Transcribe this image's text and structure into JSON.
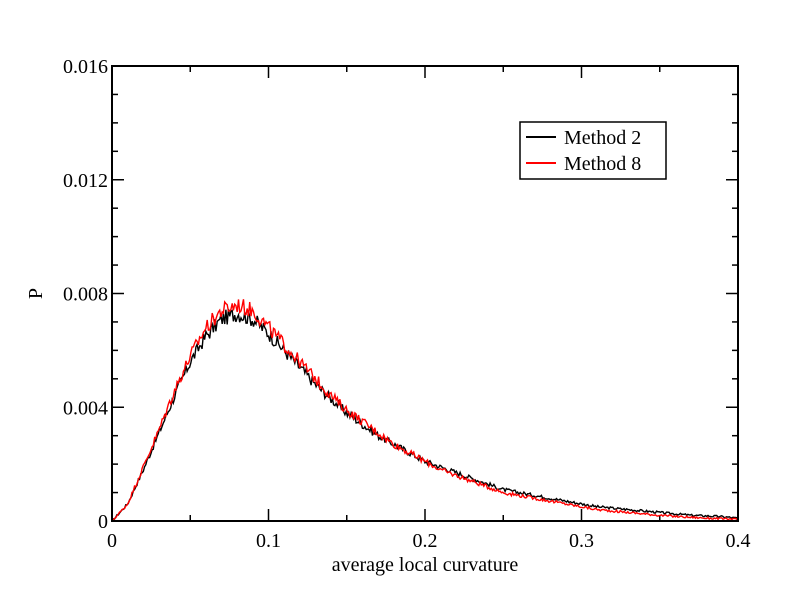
{
  "chart_data": {
    "type": "line",
    "title": "",
    "xlabel": "average local curvature",
    "ylabel": "P",
    "xlim": [
      0,
      0.4
    ],
    "ylim": [
      0,
      0.016
    ],
    "x_ticks": [
      "0",
      "0.1",
      "0.2",
      "0.3",
      "0.4"
    ],
    "y_ticks": [
      "0",
      "0.004",
      "0.008",
      "0.012",
      "0.016"
    ],
    "grid": false,
    "legend_position": "top-right",
    "series": [
      {
        "name": "Method 2",
        "color": "#000000",
        "x": [
          0,
          0.01,
          0.02,
          0.03,
          0.04,
          0.05,
          0.06,
          0.07,
          0.08,
          0.09,
          0.1,
          0.11,
          0.12,
          0.13,
          0.14,
          0.15,
          0.16,
          0.17,
          0.18,
          0.19,
          0.2,
          0.21,
          0.22,
          0.23,
          0.24,
          0.25,
          0.26,
          0.27,
          0.28,
          0.29,
          0.3,
          0.31,
          0.32,
          0.33,
          0.34,
          0.35,
          0.36,
          0.37,
          0.38,
          0.39,
          0.4
        ],
        "y": [
          0.0,
          0.0006,
          0.0018,
          0.0031,
          0.0044,
          0.0056,
          0.0065,
          0.0071,
          0.0073,
          0.0071,
          0.0066,
          0.006,
          0.0054,
          0.0048,
          0.0043,
          0.0038,
          0.0034,
          0.003,
          0.0027,
          0.0024,
          0.0021,
          0.0019,
          0.0017,
          0.0015,
          0.0013,
          0.0011,
          0.001,
          0.0009,
          0.0008,
          0.0007,
          0.0006,
          0.0005,
          0.00045,
          0.0004,
          0.00035,
          0.0003,
          0.00025,
          0.0002,
          0.00018,
          0.00015,
          0.0001
        ]
      },
      {
        "name": "Method 8",
        "color": "#ff0000",
        "x": [
          0,
          0.01,
          0.02,
          0.03,
          0.04,
          0.05,
          0.06,
          0.07,
          0.08,
          0.09,
          0.1,
          0.11,
          0.12,
          0.13,
          0.14,
          0.15,
          0.16,
          0.17,
          0.18,
          0.19,
          0.2,
          0.21,
          0.22,
          0.23,
          0.24,
          0.25,
          0.26,
          0.27,
          0.28,
          0.29,
          0.3,
          0.31,
          0.32,
          0.33,
          0.34,
          0.35,
          0.36,
          0.37,
          0.38,
          0.39,
          0.4
        ],
        "y": [
          0.0,
          0.0006,
          0.0019,
          0.0032,
          0.0046,
          0.0058,
          0.0068,
          0.0074,
          0.0076,
          0.0074,
          0.0068,
          0.0062,
          0.0056,
          0.005,
          0.0044,
          0.0039,
          0.0035,
          0.0031,
          0.0027,
          0.0024,
          0.0021,
          0.0018,
          0.0016,
          0.0014,
          0.0012,
          0.001,
          0.0009,
          0.0008,
          0.0007,
          0.0006,
          0.0005,
          0.0004,
          0.00035,
          0.0003,
          0.00025,
          0.0002,
          0.00016,
          0.00013,
          0.0001,
          8e-05,
          6e-05
        ]
      }
    ]
  }
}
